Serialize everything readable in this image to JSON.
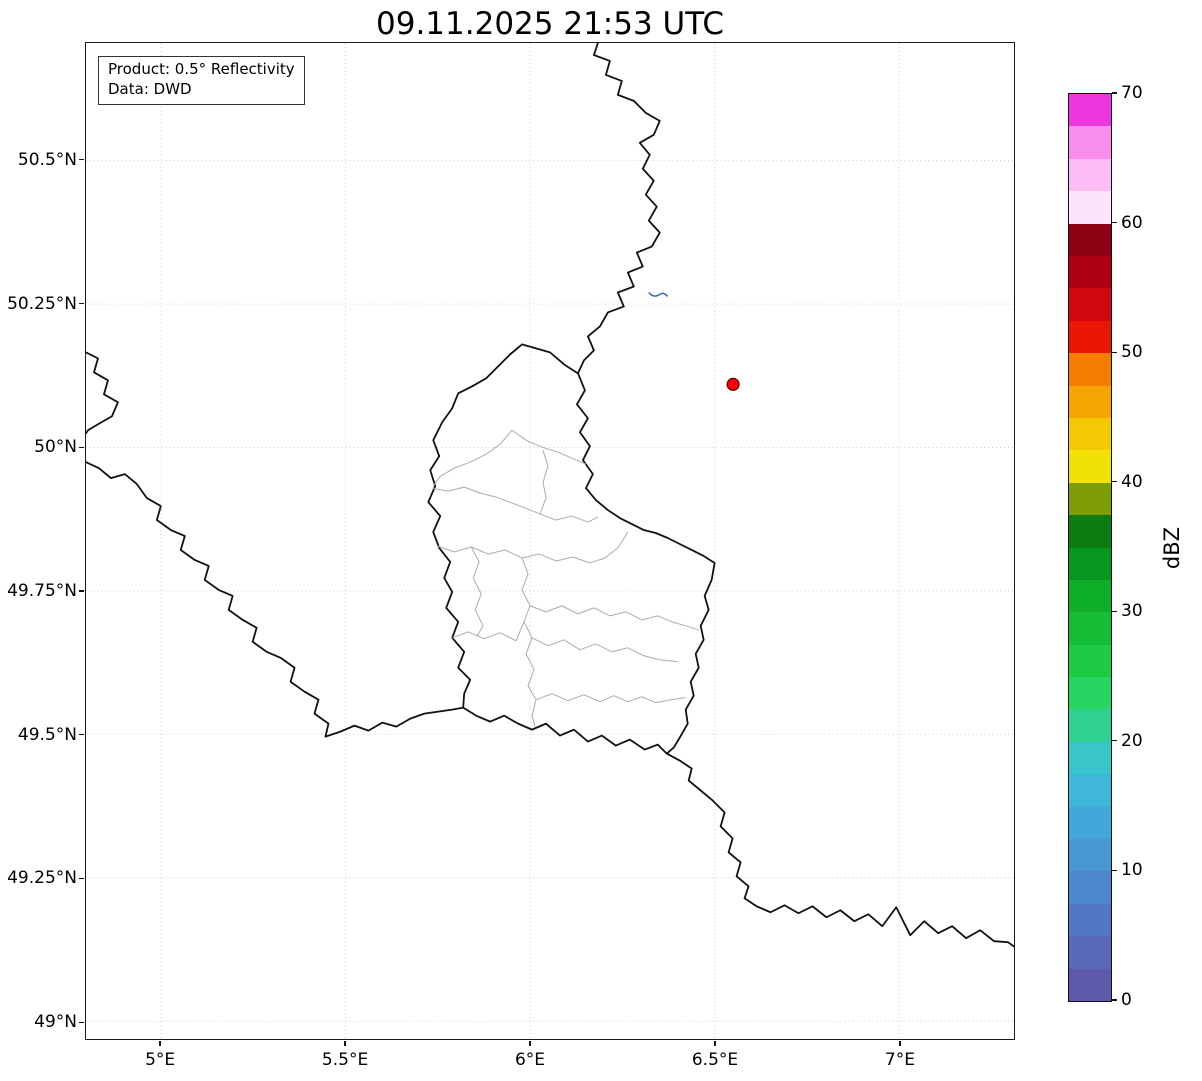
{
  "title": "09.11.2025 21:53 UTC",
  "info_box": {
    "line1": "Product: 0.5° Reflectivity",
    "line2": "Data: DWD"
  },
  "map": {
    "extent": {
      "lon_min": 4.797,
      "lon_max": 7.311,
      "lat_min": 48.969,
      "lat_max": 50.705
    },
    "radar_marker": {
      "lon": 6.55,
      "lat": 50.11,
      "color": "#ff0000",
      "edge_color": "#550000"
    },
    "x_ticks": [
      {
        "lon": 5.0,
        "label": "5°E"
      },
      {
        "lon": 5.5,
        "label": "5.5°E"
      },
      {
        "lon": 6.0,
        "label": "6°E"
      },
      {
        "lon": 6.5,
        "label": "6.5°E"
      },
      {
        "lon": 7.0,
        "label": "7°E"
      }
    ],
    "y_ticks": [
      {
        "lat": 50.5,
        "label": "50.5°N"
      },
      {
        "lat": 50.25,
        "label": "50.25°N"
      },
      {
        "lat": 50.0,
        "label": "50°N"
      },
      {
        "lat": 49.75,
        "label": "49.75°N"
      },
      {
        "lat": 49.5,
        "label": "49.5°N"
      },
      {
        "lat": 49.25,
        "label": "49.25°N"
      },
      {
        "lat": 49.0,
        "label": "49°N"
      }
    ]
  },
  "colorbar": {
    "label": "dBZ",
    "min": 0,
    "max": 70,
    "ticks": [
      {
        "value": 0,
        "label": "0"
      },
      {
        "value": 10,
        "label": "10"
      },
      {
        "value": 20,
        "label": "20"
      },
      {
        "value": 30,
        "label": "30"
      },
      {
        "value": 40,
        "label": "40"
      },
      {
        "value": 50,
        "label": "50"
      },
      {
        "value": 60,
        "label": "60"
      },
      {
        "value": 70,
        "label": "70"
      }
    ],
    "bands": [
      "#5e5aaa",
      "#5968b8",
      "#5377c4",
      "#4e87cd",
      "#4997d3",
      "#44a7d9",
      "#3fb7d9",
      "#39c6cb",
      "#2fd292",
      "#26d562",
      "#1ecb45",
      "#16bd36",
      "#0eae28",
      "#07971e",
      "#0d7d13",
      "#7f9c09",
      "#f2e105",
      "#f3c904",
      "#f4a503",
      "#f57d02",
      "#ea1606",
      "#d1060e",
      "#ad0213",
      "#8d0114",
      "#fce4fa",
      "#fbbdf4",
      "#f98ded",
      "#ee36de"
    ]
  }
}
